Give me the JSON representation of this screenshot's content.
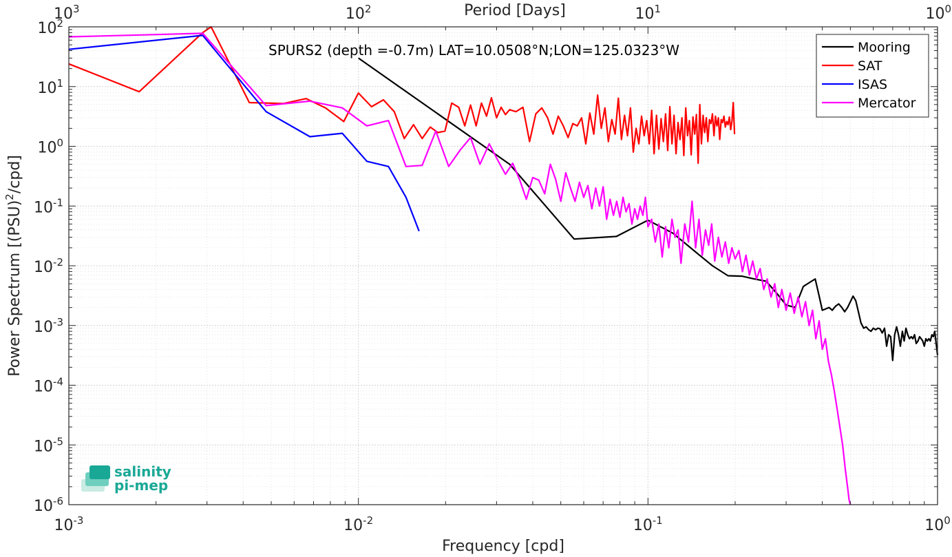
{
  "chart_data": {
    "type": "line",
    "x_scale": "log",
    "y_scale": "log",
    "xlim": [
      0.001,
      1
    ],
    "ylim": [
      1e-06,
      100
    ],
    "xlabel": "Frequency [cpd]",
    "ylabel": "Power Spectrum [(PSU)",
    "ylabel_sup": "2",
    "ylabel_tail": "/cpd]",
    "x2label": "Period [Days]",
    "annotation": "SPURS2 (depth =-0.7m) LAT=10.0508°N;LON=125.0323°W",
    "grid": true,
    "legend_position": "top-right",
    "x_ticks": [
      {
        "value": 0.001,
        "base": "10",
        "exp": "-3"
      },
      {
        "value": 0.01,
        "base": "10",
        "exp": "-2"
      },
      {
        "value": 0.1,
        "base": "10",
        "exp": "-1"
      },
      {
        "value": 1,
        "base": "10",
        "exp": "0"
      }
    ],
    "y_ticks": [
      {
        "value": 100,
        "base": "10",
        "exp": "2"
      },
      {
        "value": 10,
        "base": "10",
        "exp": "1"
      },
      {
        "value": 1,
        "base": "10",
        "exp": "0"
      },
      {
        "value": 0.1,
        "base": "10",
        "exp": "-1"
      },
      {
        "value": 0.01,
        "base": "10",
        "exp": "-2"
      },
      {
        "value": 0.001,
        "base": "10",
        "exp": "-3"
      },
      {
        "value": 0.0001,
        "base": "10",
        "exp": "-4"
      },
      {
        "value": 1e-05,
        "base": "10",
        "exp": "-5"
      },
      {
        "value": 1e-06,
        "base": "10",
        "exp": "-6"
      }
    ],
    "x2_ticks": [
      {
        "value": 0.001,
        "base": "10",
        "exp": "3"
      },
      {
        "value": 0.01,
        "base": "10",
        "exp": "2"
      },
      {
        "value": 0.1,
        "base": "10",
        "exp": "1"
      },
      {
        "value": 1,
        "base": "10",
        "exp": "0"
      }
    ],
    "series": [
      {
        "name": "Mooring",
        "color": "#000000",
        "x": [
          0.01,
          0.0333,
          0.0556,
          0.0778,
          0.1,
          0.122,
          0.144,
          0.167,
          0.189,
          0.211,
          0.233,
          0.256,
          0.278,
          0.3,
          0.322,
          0.344,
          0.367,
          0.378,
          0.389,
          0.4,
          0.411,
          0.422,
          0.433,
          0.444,
          0.456,
          0.467,
          0.478,
          0.489,
          0.5,
          0.511,
          0.522,
          0.533,
          0.544,
          0.556,
          0.567,
          0.578,
          0.589,
          0.6,
          0.611,
          0.622,
          0.633,
          0.644,
          0.656,
          0.667,
          0.678,
          0.689,
          0.7,
          0.711,
          0.722,
          0.733,
          0.744,
          0.756,
          0.767,
          0.778,
          0.789,
          0.8,
          0.811,
          0.822,
          0.833,
          0.844,
          0.856,
          0.867,
          0.878,
          0.889,
          0.9,
          0.911,
          0.922,
          0.933,
          0.944,
          0.956,
          0.967,
          0.978,
          1.0
        ],
        "y": [
          30,
          0.5,
          0.028,
          0.031,
          0.058,
          0.035,
          0.018,
          0.01,
          0.0068,
          0.0067,
          0.006,
          0.0055,
          0.0035,
          0.0022,
          0.002,
          0.0045,
          0.0055,
          0.006,
          0.0033,
          0.0018,
          0.0019,
          0.002,
          0.0018,
          0.0021,
          0.0023,
          0.002,
          0.0017,
          0.002,
          0.0025,
          0.0031,
          0.0026,
          0.0017,
          0.0011,
          0.0009,
          0.00095,
          0.00085,
          0.0008,
          0.0009,
          0.00085,
          0.0009,
          0.00088,
          0.00075,
          0.0009,
          0.00045,
          0.0007,
          0.00065,
          0.00026,
          0.0007,
          0.00095,
          0.0007,
          0.00045,
          0.0008,
          0.00055,
          0.0009,
          0.0007,
          0.0006,
          0.00065,
          0.0006,
          0.0007,
          0.0005,
          0.00055,
          0.00065,
          0.0006,
          0.00055,
          0.00045,
          0.0006,
          0.00055,
          0.0006,
          0.00055,
          0.0007,
          0.00065,
          0.0008,
          0.00032
        ]
      },
      {
        "name": "SAT",
        "color": "#ff0000",
        "x": [
          0.001,
          0.00175,
          0.0029,
          0.0031,
          0.0042,
          0.0055,
          0.0066,
          0.0077,
          0.0089,
          0.01,
          0.0111,
          0.0122,
          0.0133,
          0.0144,
          0.0155,
          0.0166,
          0.0177,
          0.0188,
          0.0199,
          0.021,
          0.0222,
          0.0233,
          0.0244,
          0.0255,
          0.0266,
          0.0277,
          0.0288,
          0.03,
          0.0311,
          0.0322,
          0.0333,
          0.035,
          0.037,
          0.039,
          0.041,
          0.043,
          0.045,
          0.047,
          0.049,
          0.051,
          0.053,
          0.055,
          0.057,
          0.059,
          0.061,
          0.063,
          0.065,
          0.067,
          0.069,
          0.071,
          0.073,
          0.075,
          0.077,
          0.079,
          0.081,
          0.083,
          0.085,
          0.087,
          0.089,
          0.091,
          0.093,
          0.095,
          0.097,
          0.099,
          0.101,
          0.103,
          0.105,
          0.107,
          0.109,
          0.111,
          0.113,
          0.115,
          0.117,
          0.119,
          0.121,
          0.123,
          0.125,
          0.127,
          0.129,
          0.131,
          0.133,
          0.135,
          0.137,
          0.139,
          0.141,
          0.143,
          0.145,
          0.147,
          0.149,
          0.151,
          0.153,
          0.155,
          0.157,
          0.159,
          0.161,
          0.163,
          0.165,
          0.167,
          0.169,
          0.171,
          0.173,
          0.175,
          0.177,
          0.179,
          0.181,
          0.183,
          0.185,
          0.187,
          0.189,
          0.191,
          0.193,
          0.195,
          0.197,
          0.199
        ],
        "y": [
          24,
          8.2,
          80,
          120,
          5.4,
          5.2,
          6.3,
          4.4,
          2.6,
          7.8,
          4.6,
          6.0,
          3.8,
          1.35,
          2.3,
          1.35,
          2.1,
          1.7,
          1.8,
          5.3,
          4.5,
          2.2,
          4.9,
          2.2,
          5.3,
          3.2,
          6.5,
          3.0,
          4.5,
          3.4,
          4.1,
          3.8,
          4.5,
          1.2,
          3.5,
          4.4,
          3.0,
          1.6,
          3.2,
          2.2,
          1.4,
          2.4,
          2.2,
          3.0,
          1.1,
          3.6,
          1.6,
          7.2,
          2.0,
          4.4,
          1.2,
          2.8,
          1.6,
          6.4,
          1.3,
          3.3,
          1.5,
          4.4,
          0.8,
          2.0,
          1.1,
          3.2,
          1.5,
          2.7,
          1.1,
          4.0,
          0.75,
          3.3,
          0.9,
          2.9,
          1.2,
          3.5,
          0.85,
          4.6,
          1.1,
          3.3,
          0.75,
          2.5,
          1.3,
          3.0,
          0.7,
          4.4,
          1.5,
          2.7,
          0.72,
          3.1,
          1.6,
          3.4,
          0.52,
          5.0,
          1.1,
          3.3,
          1.7,
          3.0,
          1.2,
          2.8,
          2.4,
          3.5,
          1.5,
          3.2,
          2.2,
          3.0,
          1.3,
          2.8,
          2.5,
          3.2,
          2.1,
          2.6,
          2.3,
          3.1,
          1.9,
          2.6,
          5.4,
          1.6
        ]
      },
      {
        "name": "ISAS",
        "color": "#0000ff",
        "x": [
          0.001,
          0.0029,
          0.0048,
          0.0068,
          0.0088,
          0.0107,
          0.0127,
          0.0146,
          0.0162
        ],
        "y": [
          42,
          72,
          3.8,
          1.45,
          1.65,
          0.56,
          0.46,
          0.14,
          0.038
        ]
      },
      {
        "name": "Mercator",
        "color": "#ff00ff",
        "x": [
          0.001,
          0.0029,
          0.0048,
          0.0068,
          0.0088,
          0.0107,
          0.0127,
          0.0146,
          0.0166,
          0.0185,
          0.0205,
          0.0224,
          0.0244,
          0.0263,
          0.0283,
          0.0302,
          0.0322,
          0.0341,
          0.0361,
          0.038,
          0.04,
          0.042,
          0.044,
          0.046,
          0.048,
          0.05,
          0.052,
          0.054,
          0.056,
          0.058,
          0.06,
          0.062,
          0.064,
          0.066,
          0.068,
          0.07,
          0.072,
          0.074,
          0.076,
          0.078,
          0.08,
          0.082,
          0.084,
          0.086,
          0.088,
          0.09,
          0.092,
          0.094,
          0.096,
          0.098,
          0.1,
          0.103,
          0.106,
          0.109,
          0.112,
          0.115,
          0.118,
          0.121,
          0.124,
          0.127,
          0.13,
          0.134,
          0.138,
          0.142,
          0.146,
          0.15,
          0.154,
          0.158,
          0.162,
          0.166,
          0.17,
          0.175,
          0.18,
          0.185,
          0.19,
          0.195,
          0.2,
          0.206,
          0.212,
          0.218,
          0.224,
          0.23,
          0.237,
          0.244,
          0.251,
          0.258,
          0.266,
          0.274,
          0.282,
          0.29,
          0.3,
          0.31,
          0.32,
          0.33,
          0.34,
          0.35,
          0.36,
          0.37,
          0.38,
          0.39,
          0.4,
          0.41,
          0.42,
          0.43,
          0.44,
          0.45,
          0.46,
          0.47,
          0.48,
          0.49,
          0.495,
          0.5
        ],
        "y": [
          68,
          78,
          4.8,
          5.7,
          4.4,
          2.2,
          2.7,
          0.46,
          0.48,
          1.8,
          0.46,
          0.85,
          1.4,
          0.5,
          1.1,
          0.6,
          0.34,
          0.52,
          0.27,
          0.13,
          0.3,
          0.27,
          0.16,
          0.5,
          0.28,
          0.12,
          0.36,
          0.2,
          0.12,
          0.25,
          0.14,
          0.22,
          0.09,
          0.2,
          0.1,
          0.21,
          0.06,
          0.13,
          0.07,
          0.12,
          0.065,
          0.14,
          0.08,
          0.11,
          0.05,
          0.09,
          0.06,
          0.1,
          0.07,
          0.14,
          0.045,
          0.06,
          0.025,
          0.05,
          0.014,
          0.045,
          0.02,
          0.06,
          0.03,
          0.04,
          0.011,
          0.05,
          0.025,
          0.12,
          0.02,
          0.06,
          0.015,
          0.04,
          0.022,
          0.05,
          0.012,
          0.03,
          0.014,
          0.025,
          0.011,
          0.02,
          0.013,
          0.018,
          0.008,
          0.015,
          0.007,
          0.012,
          0.006,
          0.009,
          0.004,
          0.006,
          0.003,
          0.005,
          0.002,
          0.004,
          0.0018,
          0.0035,
          0.0016,
          0.003,
          0.0014,
          0.0025,
          0.001,
          0.0018,
          0.0006,
          0.0012,
          0.0004,
          0.0006,
          0.00025,
          0.00015,
          8e-05,
          4e-05,
          2e-05,
          1e-05,
          4e-06,
          1.8e-06,
          1.2e-06,
          9e-07
        ]
      }
    ]
  },
  "logo": {
    "line1": "salinity",
    "line2": "pi-mep"
  }
}
